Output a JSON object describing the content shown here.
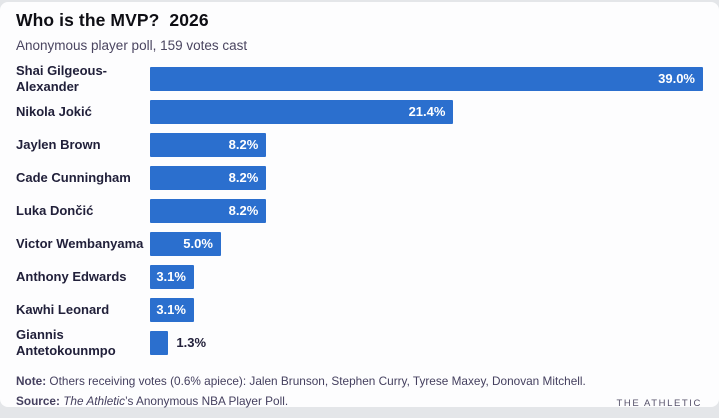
{
  "header": {
    "title": "Who is the MVP?  2026",
    "subtitle": "Anonymous player poll, 159 votes cast"
  },
  "chart_data": {
    "type": "bar",
    "orientation": "horizontal",
    "title": "Who is the MVP?  2026",
    "subtitle": "Anonymous player poll, 159 votes cast",
    "categories": [
      "Shai Gilgeous-Alexander",
      "Nikola Jokić",
      "Jaylen Brown",
      "Cade Cunningham",
      "Luka Dončić",
      "Victor Wembanyama",
      "Anthony Edwards",
      "Kawhi Leonard",
      "Giannis Antetokounmpo"
    ],
    "values": [
      39.0,
      21.4,
      8.2,
      8.2,
      8.2,
      5.0,
      3.1,
      3.1,
      1.3
    ],
    "value_labels": [
      "39.0%",
      "21.4%",
      "8.2%",
      "8.2%",
      "8.2%",
      "5.0%",
      "3.1%",
      "3.1%",
      "1.3%"
    ],
    "xlim": [
      0,
      39
    ],
    "grid": false,
    "legend": false,
    "bar_color": "#2b6fce",
    "value_label_color_inside": "#ffffff",
    "value_label_color_outside": "#23213b"
  },
  "footer": {
    "note_label": "Note:",
    "note_text": " Others receiving votes (0.6% apiece): Jalen Brunson, Stephen Curry, Tyrese Maxey, Donovan Mitchell.",
    "source_label": "Source:",
    "source_italic": " The Athletic",
    "source_text": "’s Anonymous NBA Player Poll.",
    "brand": "THE ATHLETIC"
  }
}
